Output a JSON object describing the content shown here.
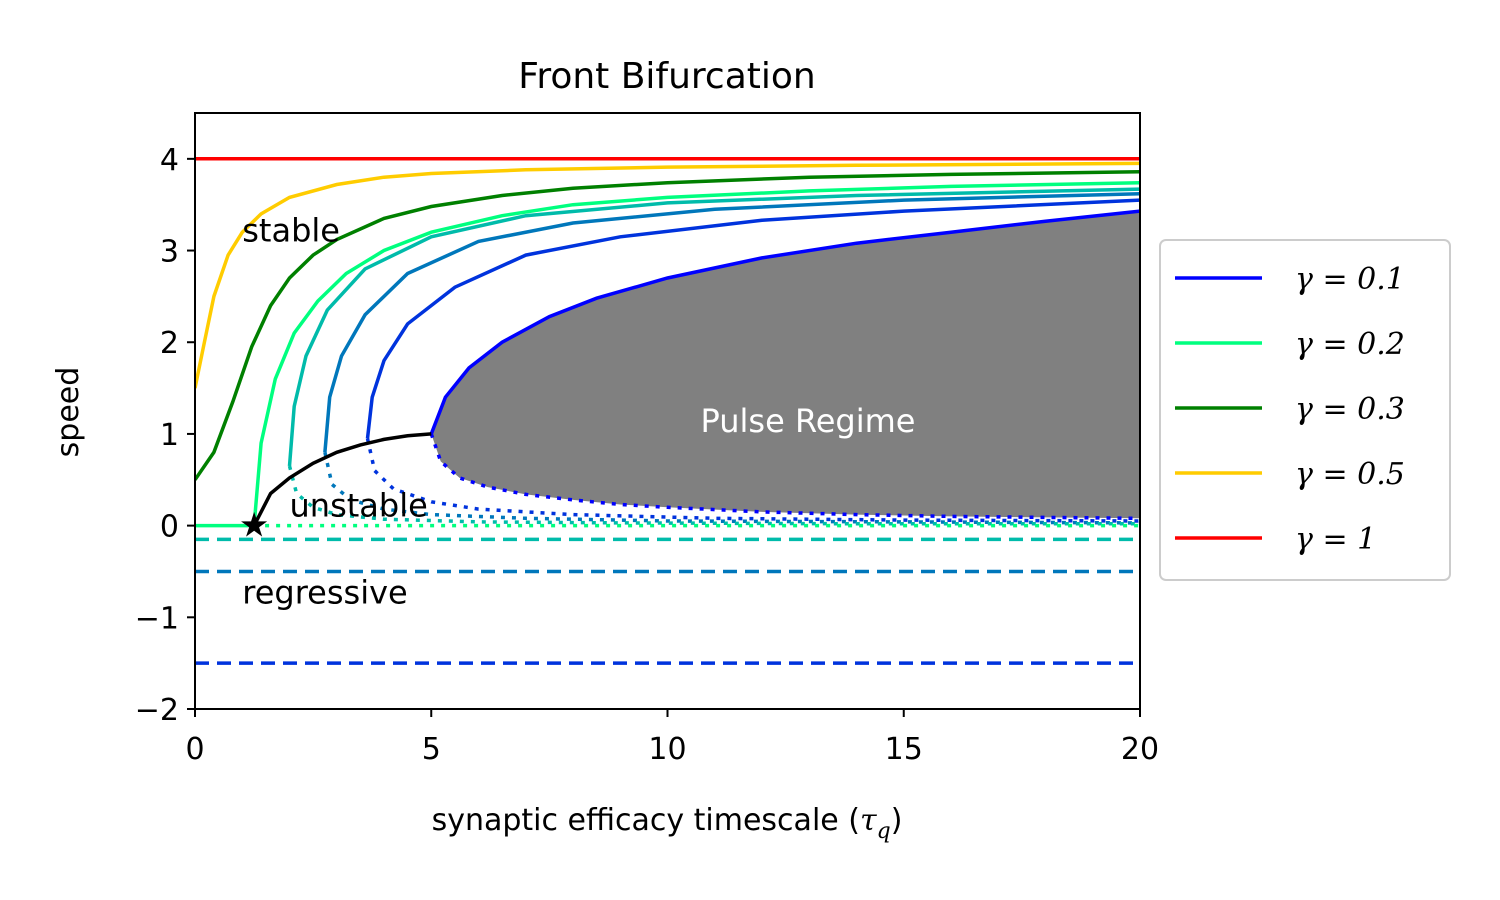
{
  "chart_data": {
    "type": "line",
    "title": "Front Bifurcation",
    "xlabel": "synaptic efficacy timescale (τq)",
    "ylabel": "speed",
    "xlim": [
      0,
      20
    ],
    "ylim": [
      -2,
      4.5
    ],
    "xticks": [
      "0",
      "5",
      "10",
      "15",
      "20"
    ],
    "yticks": [
      "−2",
      "−1",
      "0",
      "1",
      "2",
      "3",
      "4"
    ],
    "grid": false,
    "legend_position": "outside-right",
    "region": {
      "label": "Pulse Regime",
      "color": "#808080"
    },
    "annotations": [
      {
        "text": "stable",
        "x": 1.0,
        "y": 3.1
      },
      {
        "text": "unstable",
        "x": 2.0,
        "y": 0.1
      },
      {
        "text": "regressive",
        "x": 1.0,
        "y": -0.85
      }
    ],
    "bifurcation_curve": {
      "color": "#000000",
      "x": [
        1.25,
        1.6,
        2.0,
        2.5,
        3.0,
        3.5,
        4.0,
        4.5,
        5.0
      ],
      "y": [
        0.0,
        0.35,
        0.52,
        0.68,
        0.8,
        0.88,
        0.94,
        0.98,
        1.0
      ]
    },
    "bifurcation_point": {
      "x": 1.25,
      "y": 0.0
    },
    "series": [
      {
        "name": "γ = 0.1",
        "color": "#0000ff",
        "stable": {
          "x": [
            5.0,
            5.3,
            5.8,
            6.5,
            7.5,
            8.5,
            10,
            12,
            14,
            16,
            18,
            20
          ],
          "y": [
            1.0,
            1.4,
            1.72,
            2.0,
            2.28,
            2.48,
            2.7,
            2.92,
            3.08,
            3.2,
            3.32,
            3.43
          ]
        },
        "unstable": {
          "x": [
            5.0,
            5.2,
            5.6,
            6.2,
            7,
            8,
            9,
            10,
            12,
            14,
            16,
            18,
            20
          ],
          "y": [
            1.0,
            0.7,
            0.52,
            0.42,
            0.34,
            0.28,
            0.23,
            0.2,
            0.15,
            0.12,
            0.1,
            0.09,
            0.08
          ]
        },
        "regressive": null
      },
      {
        "name": "",
        "color": "#0033dd",
        "stable": {
          "x": [
            3.65,
            3.75,
            4.0,
            4.5,
            5.5,
            7,
            9,
            12,
            15,
            20
          ],
          "y": [
            0.95,
            1.4,
            1.8,
            2.2,
            2.6,
            2.95,
            3.15,
            3.33,
            3.43,
            3.55
          ]
        },
        "unstable": {
          "x": [
            3.65,
            3.8,
            4.2,
            5,
            6,
            8,
            11,
            15,
            20
          ],
          "y": [
            0.95,
            0.6,
            0.4,
            0.26,
            0.18,
            0.12,
            0.08,
            0.06,
            0.05
          ]
        },
        "regressive": -1.5
      },
      {
        "name": "",
        "color": "#0077bb",
        "stable": {
          "x": [
            2.75,
            2.85,
            3.1,
            3.6,
            4.5,
            6,
            8,
            11,
            15,
            20
          ],
          "y": [
            0.8,
            1.4,
            1.85,
            2.3,
            2.75,
            3.1,
            3.3,
            3.45,
            3.55,
            3.62
          ]
        },
        "unstable": {
          "x": [
            2.75,
            2.9,
            3.3,
            4,
            5,
            7,
            10,
            15,
            20
          ],
          "y": [
            0.8,
            0.45,
            0.28,
            0.18,
            0.12,
            0.08,
            0.05,
            0.04,
            0.03
          ]
        },
        "regressive": -0.5
      },
      {
        "name": "",
        "color": "#00bbaa",
        "stable": {
          "x": [
            2.0,
            2.1,
            2.35,
            2.8,
            3.6,
            5,
            7,
            10,
            14,
            20
          ],
          "y": [
            0.65,
            1.3,
            1.85,
            2.35,
            2.8,
            3.15,
            3.38,
            3.52,
            3.6,
            3.67
          ]
        },
        "unstable": {
          "x": [
            2.0,
            2.15,
            2.5,
            3,
            4,
            6,
            9,
            14,
            20
          ],
          "y": [
            0.65,
            0.35,
            0.2,
            0.12,
            0.07,
            0.04,
            0.03,
            0.02,
            0.02
          ]
        },
        "regressive": -0.15
      },
      {
        "name": "γ = 0.2",
        "color": "#00ff7f",
        "stable": {
          "x": [
            1.25,
            1.4,
            1.7,
            2.1,
            2.6,
            3.2,
            4,
            5,
            6.5,
            8,
            10,
            13,
            16,
            20
          ],
          "y": [
            0.0,
            0.9,
            1.6,
            2.1,
            2.45,
            2.75,
            3.0,
            3.2,
            3.38,
            3.5,
            3.58,
            3.65,
            3.7,
            3.74
          ]
        },
        "unstable": {
          "x": [
            1.25,
            3,
            6,
            10,
            15,
            20
          ],
          "y": [
            0.0,
            0.0,
            0.0,
            0.0,
            0.0,
            0.0
          ]
        },
        "lower_stable": {
          "x": [
            0,
            1.25
          ],
          "y": [
            0.0,
            0.0
          ]
        },
        "regressive": null
      },
      {
        "name": "γ = 0.3",
        "color": "#008000",
        "stable": {
          "x": [
            0,
            0.4,
            0.8,
            1.2,
            1.6,
            2.0,
            2.5,
            3.0,
            4,
            5,
            6.5,
            8,
            10,
            13,
            16,
            20
          ],
          "y": [
            0.5,
            0.8,
            1.35,
            1.95,
            2.4,
            2.7,
            2.95,
            3.12,
            3.35,
            3.48,
            3.6,
            3.68,
            3.74,
            3.8,
            3.83,
            3.86
          ]
        },
        "unstable": null,
        "regressive": null
      },
      {
        "name": "γ = 0.5",
        "color": "#ffcc00",
        "stable": {
          "x": [
            0,
            0.2,
            0.4,
            0.7,
            1.0,
            1.4,
            2.0,
            3.0,
            4,
            5,
            7,
            10,
            14,
            20
          ],
          "y": [
            1.5,
            2.0,
            2.5,
            2.95,
            3.2,
            3.4,
            3.58,
            3.72,
            3.8,
            3.84,
            3.88,
            3.91,
            3.93,
            3.95
          ]
        },
        "unstable": null,
        "regressive": null
      },
      {
        "name": "γ = 1",
        "color": "#ff0000",
        "stable": {
          "x": [
            0,
            20
          ],
          "y": [
            4.0,
            4.0
          ]
        },
        "unstable": null,
        "regressive": null
      }
    ],
    "legend": [
      {
        "label": "γ = 0.1",
        "color": "#0000ff"
      },
      {
        "label": "γ = 0.2",
        "color": "#00ff7f"
      },
      {
        "label": "γ = 0.3",
        "color": "#008000"
      },
      {
        "label": "γ = 0.5",
        "color": "#ffcc00"
      },
      {
        "label": "γ = 1",
        "color": "#ff0000"
      }
    ]
  }
}
